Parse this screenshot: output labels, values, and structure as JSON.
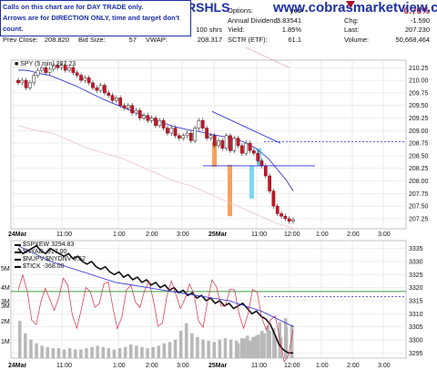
{
  "header": {
    "ticker": "RSHLS",
    "site": "www.cobrasmarketview.com",
    "note_line1": "Calls on this chart are for DAY TRADE only.",
    "note_line2": "Arrows are for DIRECTION ONLY, time and target don't count.",
    "col1": [
      {
        "label": "Open:",
        "value": "209.070"
      },
      {
        "label": "High:",
        "value": "209.350"
      },
      {
        "label": "Low:",
        "value": "207.080"
      },
      {
        "label": "Prev Close:",
        "value": "208.820"
      }
    ],
    "col2": [
      {
        "label": "Ask:",
        "value": "207.210"
      },
      {
        "label": "Ask Size:",
        "value": "114"
      },
      {
        "label": "Bid:",
        "value": "207.200"
      },
      {
        "label": "Bid Size:",
        "value": "57"
      }
    ],
    "col3": [
      {
        "label": "P/E",
        "value": ""
      },
      {
        "label": "EPS:",
        "value": ""
      },
      {
        "label": "Last Size:",
        "value": "100 shrs"
      },
      {
        "label": "VWAP:",
        "value": "208.317"
      }
    ],
    "col4": [
      {
        "label": "Options:",
        "value": "yes"
      },
      {
        "label": "Annual Dividend:",
        "value": "3.83541"
      },
      {
        "label": "Yield:",
        "value": "1.85%"
      },
      {
        "label": "SCTR (ETF):",
        "value": "61.1"
      }
    ],
    "col5": [
      {
        "label": "",
        "value": "-0.76%"
      },
      {
        "label": "Chg:",
        "value": "-1.590"
      },
      {
        "label": "Last:",
        "value": "207.230"
      },
      {
        "label": "Volume:",
        "value": "50,668,464"
      }
    ],
    "change_color": "#b0102a"
  },
  "chart_data": [
    {
      "type": "candlestick",
      "legend": "SPY (5 min) 207.23",
      "x_ticks": [
        "24Mar",
        "11:00",
        "1:00",
        "2:00",
        "3:00",
        "25Mar",
        "11:00",
        "12:00",
        "1:00",
        "2:00",
        "3:00"
      ],
      "y_ticks": [
        207.25,
        207.5,
        207.75,
        208.0,
        208.25,
        208.5,
        208.75,
        209.0,
        209.25,
        209.5,
        209.75,
        210.0,
        210.25
      ],
      "ylim": [
        207.05,
        210.4
      ],
      "close": [
        209.95,
        210.0,
        209.85,
        209.95,
        210.1,
        210.2,
        210.25,
        210.15,
        210.22,
        210.3,
        210.25,
        210.3,
        210.2,
        210.25,
        210.15,
        210.1,
        210.0,
        210.05,
        209.95,
        209.85,
        209.8,
        209.9,
        209.75,
        209.7,
        209.6,
        209.65,
        209.5,
        209.45,
        209.5,
        209.35,
        209.4,
        209.25,
        209.3,
        209.2,
        209.25,
        209.1,
        209.2,
        209.05,
        208.95,
        209.05,
        208.9,
        208.85,
        208.9,
        208.95,
        208.8,
        209.05,
        209.2,
        209.05,
        208.85,
        208.9,
        208.7,
        208.8,
        208.65,
        208.9,
        208.6,
        208.85,
        208.7,
        208.55,
        208.75,
        208.6,
        208.55,
        208.4,
        208.3,
        208.1,
        207.8,
        207.5,
        207.35,
        207.3,
        207.25,
        207.2,
        207.23
      ],
      "ma_fast": [
        210.2,
        210.2,
        210.18,
        210.15,
        210.12,
        210.1,
        210.05,
        210.0,
        209.95,
        209.9,
        209.84,
        209.78,
        209.72,
        209.66,
        209.6,
        209.55,
        209.5,
        209.45,
        209.4,
        209.35,
        209.3,
        209.25,
        209.2,
        209.16,
        209.12,
        209.08,
        209.05,
        209.02,
        209.0,
        208.98,
        208.95,
        208.92,
        208.9,
        208.88,
        208.85,
        208.82,
        208.78,
        208.72,
        208.65,
        208.55,
        208.45,
        208.3,
        208.15,
        208.0,
        207.8
      ],
      "ma_slow": [
        210.65,
        210.6,
        210.55,
        210.5,
        210.45,
        210.4,
        210.35,
        210.3,
        210.25
      ],
      "annotations": {
        "trendline_color": "#2b2ed8",
        "hline_solid": 208.3,
        "hline_dashed": 208.78,
        "orange_color": "#f6a15a",
        "cyan_color": "#7fd8ee"
      }
    },
    {
      "type": "line",
      "legend": [
        {
          "name": "$SPXEW 3294.83",
          "marker": "line"
        },
        {
          "name": "$NYAD -917.00",
          "marker": "line"
        },
        {
          "name": "$NUPV:$NYDNV 0.52",
          "marker": "line"
        },
        {
          "name": "$TICK -368.00",
          "marker": "line"
        }
      ],
      "right_ticks": [
        3295,
        3300,
        3305,
        3310,
        3315,
        3320,
        3325,
        3330,
        3335
      ],
      "right_lim": [
        3293,
        3338
      ],
      "left_ticks": [
        "1M",
        "2M",
        "3M",
        "3M",
        "4M",
        "5M"
      ],
      "hline_solid": 3318.5,
      "hline_dashed": 3316.5,
      "spxew": [
        3335,
        3333,
        3334,
        3335,
        3336,
        3334,
        3333,
        3335,
        3334,
        3333,
        3332,
        3333,
        3331,
        3332,
        3330,
        3329,
        3330,
        3328,
        3327,
        3328,
        3326,
        3325,
        3326,
        3324,
        3325,
        3323,
        3324,
        3322,
        3323,
        3321,
        3322,
        3320,
        3321,
        3319,
        3320,
        3318,
        3319,
        3317,
        3318,
        3316,
        3317,
        3315,
        3316,
        3314,
        3315,
        3313,
        3314,
        3312,
        3313,
        3314,
        3312,
        3310,
        3311,
        3309,
        3308,
        3306,
        3302,
        3298,
        3296,
        3295,
        3295
      ],
      "volume": [
        3,
        2,
        1.5,
        1.2,
        1.0,
        0.9,
        0.8,
        0.8,
        0.7,
        0.8,
        0.7,
        0.7,
        0.8,
        0.9,
        1.0,
        0.9,
        0.8,
        0.7,
        0.8,
        0.9,
        1.1,
        1.0,
        0.9,
        0.8,
        0.9,
        1.0,
        1.2,
        1.3,
        1.5,
        2.2,
        2.8,
        2.0,
        1.7,
        1.5,
        1.4,
        1.3,
        1.5,
        1.6,
        1.5,
        1.4,
        1.6,
        1.8,
        1.7,
        1.9,
        2.0,
        2.2,
        1.8,
        1.7,
        2.5,
        2.7
      ],
      "colors": {
        "spxew": "#111111",
        "nyad": "#d62b4a",
        "breadth": "#2c2cd4",
        "volume": "#b8b8b8",
        "green": "#3d9a3d"
      }
    }
  ]
}
